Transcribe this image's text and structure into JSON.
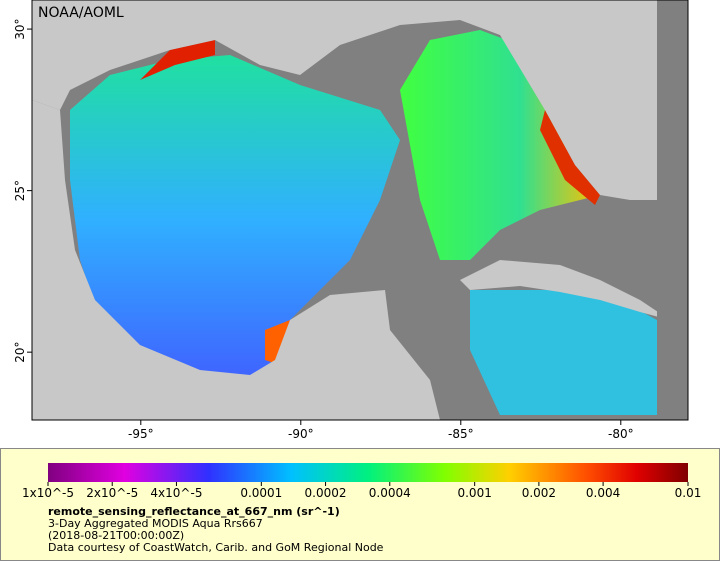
{
  "map": {
    "credit": "NOAA/AOML",
    "lon_ticks": [
      {
        "value": -95,
        "label": "-95°"
      },
      {
        "value": -90,
        "label": "-90°"
      },
      {
        "value": -85,
        "label": "-85°"
      },
      {
        "value": -80,
        "label": "-80°"
      }
    ],
    "lat_ticks": [
      {
        "value": 30,
        "label": "30°"
      },
      {
        "value": 25,
        "label": "25°"
      },
      {
        "value": 20,
        "label": "20°"
      }
    ],
    "lon_range": [
      -98.4,
      -77.9
    ],
    "lat_range": [
      17.9,
      30.9
    ]
  },
  "legend": {
    "scale": "log",
    "range": [
      1e-05,
      0.01
    ],
    "ticks": [
      {
        "value": 1e-05,
        "label": "1x10^-5"
      },
      {
        "value": 2e-05,
        "label": "2x10^-5"
      },
      {
        "value": 4e-05,
        "label": "4x10^-5"
      },
      0.0001,
      0.0002,
      0.0004,
      0.001,
      0.002,
      0.004,
      0.01
    ],
    "variable": "remote_sensing_reflectance_at_667_nm (sr^-1)",
    "description": "3-Day Aggregated MODIS Aqua Rrs667",
    "time": "(2018-08-21T00:00:00Z)",
    "credit": "Data courtesy of CoastWatch, Carib. and GoM Regional Node"
  }
}
